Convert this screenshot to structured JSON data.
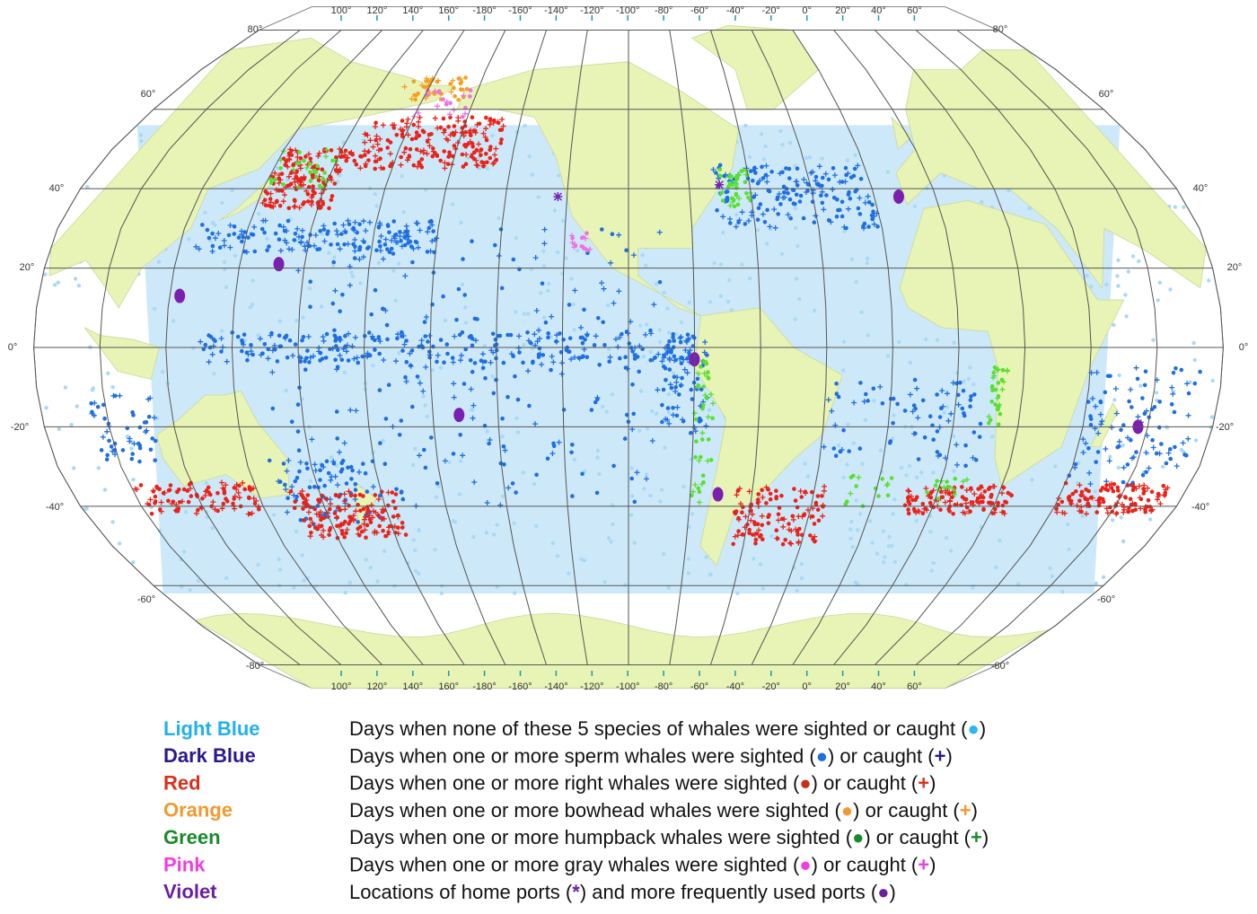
{
  "map": {
    "longitude_labels": [
      "100°",
      "120°",
      "140°",
      "160°",
      "-180°",
      "-160°",
      "-140°",
      "-120°",
      "-100°",
      "-80°",
      "-60°",
      "-40°",
      "-20°",
      "0°",
      "20°",
      "40°",
      "60°"
    ],
    "latitude_labels": [
      "80°",
      "60°",
      "40°",
      "20°",
      "0°",
      "-20°",
      "-40°",
      "-60°",
      "-80°"
    ]
  },
  "legend": [
    {
      "label": "Light Blue",
      "color": "#21b0ec",
      "parts": [
        {
          "text": "Days when none of these 5 species of whales were sighted or caught ("
        },
        {
          "text": "●",
          "color": "#29b6f6"
        },
        {
          "text": ")"
        }
      ]
    },
    {
      "label": "Dark Blue",
      "color": "#2a1890",
      "parts": [
        {
          "text": "Days when one or more sperm whales were sighted ("
        },
        {
          "text": "●",
          "color": "#1f6fe0"
        },
        {
          "text": ") or caught ("
        },
        {
          "text": "+",
          "color": "#2a1890"
        },
        {
          "text": ")"
        }
      ]
    },
    {
      "label": "Red",
      "color": "#d8301c",
      "parts": [
        {
          "text": "Days when one or more right whales were sighted ("
        },
        {
          "text": "●",
          "color": "#c8301c"
        },
        {
          "text": ") or caught ("
        },
        {
          "text": "+",
          "color": "#e0301e"
        },
        {
          "text": ")"
        }
      ]
    },
    {
      "label": "Orange",
      "color": "#f09a30",
      "parts": [
        {
          "text": "Days when one or more bowhead whales were sighted ("
        },
        {
          "text": "●",
          "color": "#f09a30"
        },
        {
          "text": ") or caught ("
        },
        {
          "text": "+",
          "color": "#f09a30"
        },
        {
          "text": ")"
        }
      ]
    },
    {
      "label": "Green",
      "color": "#1a8a2a",
      "parts": [
        {
          "text": "Days when one or more humpback whales were sighted ("
        },
        {
          "text": "●",
          "color": "#1a8a2a"
        },
        {
          "text": ") or caught ("
        },
        {
          "text": "+",
          "color": "#1a8a2a"
        },
        {
          "text": ")"
        }
      ]
    },
    {
      "label": "Pink",
      "color": "#f03ce0",
      "parts": [
        {
          "text": "Days when one or more gray whales were sighted ("
        },
        {
          "text": "●",
          "color": "#f03ce0"
        },
        {
          "text": ") or caught ("
        },
        {
          "text": "+",
          "color": "#f03ce0"
        },
        {
          "text": ")"
        }
      ]
    },
    {
      "label": "Violet",
      "color": "#6a1fa0",
      "parts": [
        {
          "text": "Locations of home ports ("
        },
        {
          "text": "*",
          "color": "#6a1fa0"
        },
        {
          "text": ") and more frequently used ports ("
        },
        {
          "text": "●",
          "color": "#6a1fa0"
        },
        {
          "text": ")"
        }
      ]
    }
  ]
}
